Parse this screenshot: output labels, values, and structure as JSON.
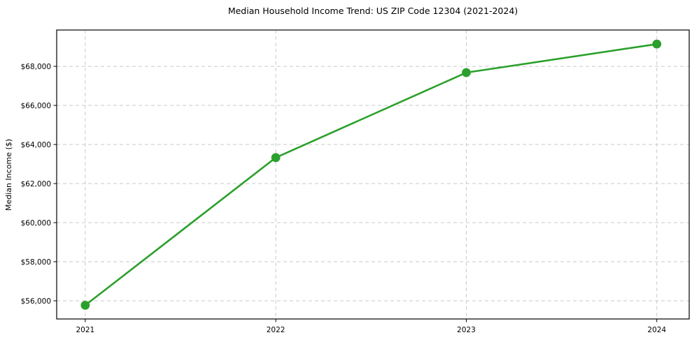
{
  "chart_data": {
    "type": "line",
    "title": "Median Household Income Trend: US ZIP Code 12304 (2021-2024)",
    "xlabel": "",
    "ylabel": "Median Income ($)",
    "x": [
      2021,
      2022,
      2023,
      2024
    ],
    "series": [
      {
        "name": "Median Household Income",
        "values": [
          55770,
          63330,
          67680,
          69140
        ]
      }
    ],
    "xticks": [
      2021,
      2022,
      2023,
      2024
    ],
    "xtick_labels": [
      "2021",
      "2022",
      "2023",
      "2024"
    ],
    "yticks": [
      56000,
      58000,
      60000,
      62000,
      64000,
      66000,
      68000
    ],
    "ytick_labels": [
      "$56,000",
      "$58,000",
      "$60,000",
      "$62,000",
      "$64,000",
      "$66,000",
      "$68,000"
    ],
    "xlim": [
      2020.85,
      2024.17
    ],
    "ylim": [
      55070,
      69860
    ],
    "grid": true,
    "legend": "none",
    "line_color": "#2ca02c",
    "marker": "circle",
    "grid_color": "#c9c9c9",
    "spine_color": "#000000",
    "background_color": "#ffffff"
  }
}
